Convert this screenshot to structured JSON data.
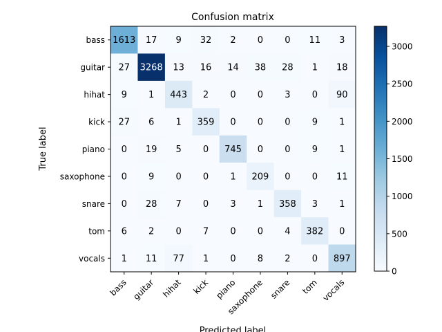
{
  "chart_data": {
    "type": "heatmap",
    "title": "Confusion matrix",
    "xlabel": "Predicted label",
    "ylabel": "True label",
    "labels": [
      "bass",
      "guitar",
      "hihat",
      "kick",
      "piano",
      "saxophone",
      "snare",
      "tom",
      "vocals"
    ],
    "values": [
      [
        1613,
        17,
        9,
        32,
        2,
        0,
        0,
        11,
        3
      ],
      [
        27,
        3268,
        13,
        16,
        14,
        38,
        28,
        1,
        18
      ],
      [
        9,
        1,
        443,
        2,
        0,
        0,
        3,
        0,
        90
      ],
      [
        27,
        6,
        1,
        359,
        0,
        0,
        0,
        9,
        1
      ],
      [
        0,
        19,
        5,
        0,
        745,
        0,
        0,
        9,
        1
      ],
      [
        0,
        9,
        0,
        0,
        1,
        209,
        0,
        0,
        11
      ],
      [
        0,
        28,
        7,
        0,
        3,
        1,
        358,
        3,
        1
      ],
      [
        6,
        2,
        0,
        7,
        0,
        0,
        4,
        382,
        0
      ],
      [
        1,
        11,
        77,
        1,
        0,
        8,
        2,
        0,
        897
      ]
    ],
    "colormap": "Blues",
    "colorbar": {
      "min": 0,
      "max": 3268,
      "ticks": [
        0,
        500,
        1000,
        1500,
        2000,
        2500,
        3000
      ]
    },
    "grid": false
  }
}
